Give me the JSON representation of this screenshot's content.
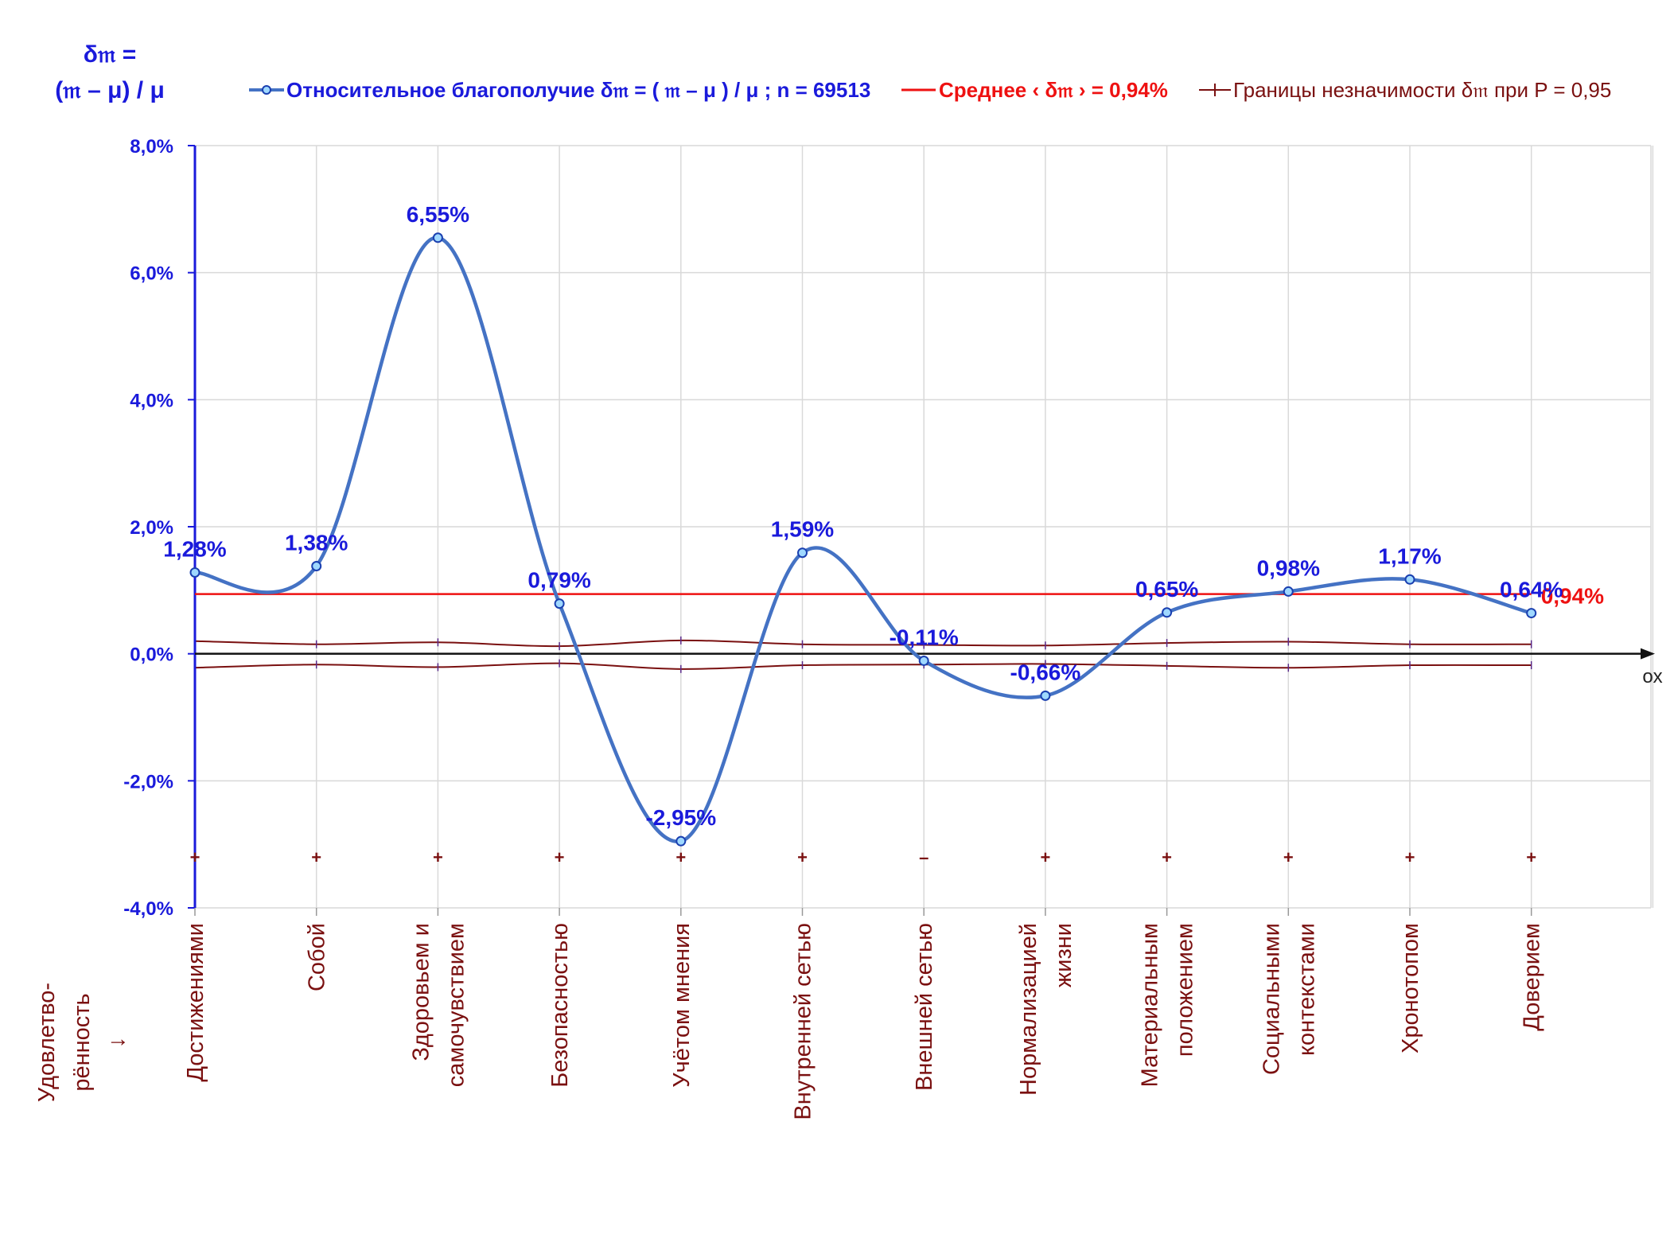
{
  "y_title": {
    "line1": "δ𝔪 =",
    "line2": "(𝔪 – μ) / μ"
  },
  "legend": {
    "main": "Относительное благополучие δ𝔪 = ( 𝔪 – μ ) / μ ; n = 69513",
    "mean": "Среднее ‹ δ𝔪 › = 0,94%",
    "bounds": "Границы незначимости δ𝔪 при P = 0,95"
  },
  "axis_x_name": "ox",
  "row_title": {
    "line1": "Удовлетво-",
    "line2": "рённость",
    "line3": "↓"
  },
  "colors": {
    "series": "#4472c4",
    "mean": "#ee1111",
    "bounds": "#7a1010",
    "axis": "#1a1adb",
    "labels": "#1a1adb"
  },
  "chart_data": {
    "type": "line",
    "y_tick_labels": [
      "8,0%",
      "6,0%",
      "4,0%",
      "2,0%",
      "0,0%",
      "-2,0%",
      "-4,0%"
    ],
    "ylim": [
      -4.0,
      8.0
    ],
    "grid": true,
    "legend_position": "top",
    "categories": [
      [
        "Достижениями"
      ],
      [
        "Собой"
      ],
      [
        "Здоровьем и",
        "самочувствием"
      ],
      [
        "Безопасностью"
      ],
      [
        "Учётом мнения"
      ],
      [
        "Внутренней сетью"
      ],
      [
        "Внешней сетью"
      ],
      [
        "Нормализацией",
        "жизни"
      ],
      [
        "Материальным",
        "положением"
      ],
      [
        "Социальными",
        "контекстами"
      ],
      [
        "Хронотопом"
      ],
      [
        "Доверием"
      ]
    ],
    "series": [
      {
        "name": "Относительное благополучие δ𝔪 = ( 𝔪 – μ ) / μ ; n = 69513",
        "values": [
          1.28,
          1.38,
          6.55,
          0.79,
          -2.95,
          1.59,
          -0.11,
          -0.66,
          0.65,
          0.98,
          1.17,
          0.64
        ],
        "labels": [
          "1,28%",
          "1,38%",
          "6,55%",
          "0,79%",
          "-2,95%",
          "1,59%",
          "-0,11%",
          "-0,66%",
          "0,65%",
          "0,98%",
          "1,17%",
          "0,64%"
        ]
      },
      {
        "name": "Среднее ‹ δ𝔪 › = 0,94%",
        "value": 0.94,
        "label": "0,94%"
      },
      {
        "name": "Границы незначимости δ𝔪 при P = 0,95",
        "upper": [
          0.2,
          0.15,
          0.18,
          0.12,
          0.21,
          0.15,
          0.14,
          0.13,
          0.17,
          0.19,
          0.15,
          0.15
        ],
        "lower": [
          -0.22,
          -0.17,
          -0.21,
          -0.15,
          -0.24,
          -0.18,
          -0.17,
          -0.16,
          -0.19,
          -0.22,
          -0.18,
          -0.18
        ]
      }
    ],
    "significance_marks": [
      "+",
      "+",
      "+",
      "+",
      "+",
      "+",
      "–",
      "+",
      "+",
      "+",
      "+",
      "+"
    ]
  }
}
